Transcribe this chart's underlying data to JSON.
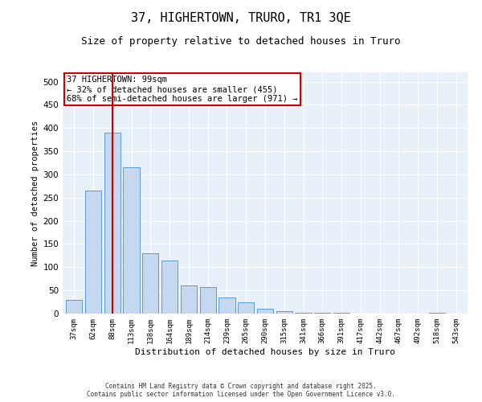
{
  "title_line1": "37, HIGHERTOWN, TRURO, TR1 3QE",
  "title_line2": "Size of property relative to detached houses in Truro",
  "xlabel": "Distribution of detached houses by size in Truro",
  "ylabel": "Number of detached properties",
  "categories": [
    "37sqm",
    "62sqm",
    "88sqm",
    "113sqm",
    "138sqm",
    "164sqm",
    "189sqm",
    "214sqm",
    "239sqm",
    "265sqm",
    "290sqm",
    "315sqm",
    "341sqm",
    "366sqm",
    "391sqm",
    "417sqm",
    "442sqm",
    "467sqm",
    "492sqm",
    "518sqm",
    "543sqm"
  ],
  "values": [
    30,
    265,
    390,
    315,
    130,
    115,
    60,
    57,
    35,
    25,
    10,
    5,
    2,
    1,
    1,
    0,
    0,
    0,
    0,
    1,
    0
  ],
  "bar_color": "#c5d8f0",
  "bar_edge_color": "#5b9bd5",
  "vline_x_index": 2,
  "vline_color": "#cc0000",
  "annotation_text": "37 HIGHERTOWN: 99sqm\n← 32% of detached houses are smaller (455)\n68% of semi-detached houses are larger (971) →",
  "annotation_box_color": "#ffffff",
  "annotation_box_edge_color": "#cc0000",
  "annotation_fontsize": 7.5,
  "ylim": [
    0,
    520
  ],
  "yticks": [
    0,
    50,
    100,
    150,
    200,
    250,
    300,
    350,
    400,
    450,
    500
  ],
  "background_color": "#e8f0fa",
  "grid_color": "#ffffff",
  "footnote": "Contains HM Land Registry data © Crown copyright and database right 2025.\nContains public sector information licensed under the Open Government Licence v3.0.",
  "title_fontsize": 11,
  "subtitle_fontsize": 9
}
